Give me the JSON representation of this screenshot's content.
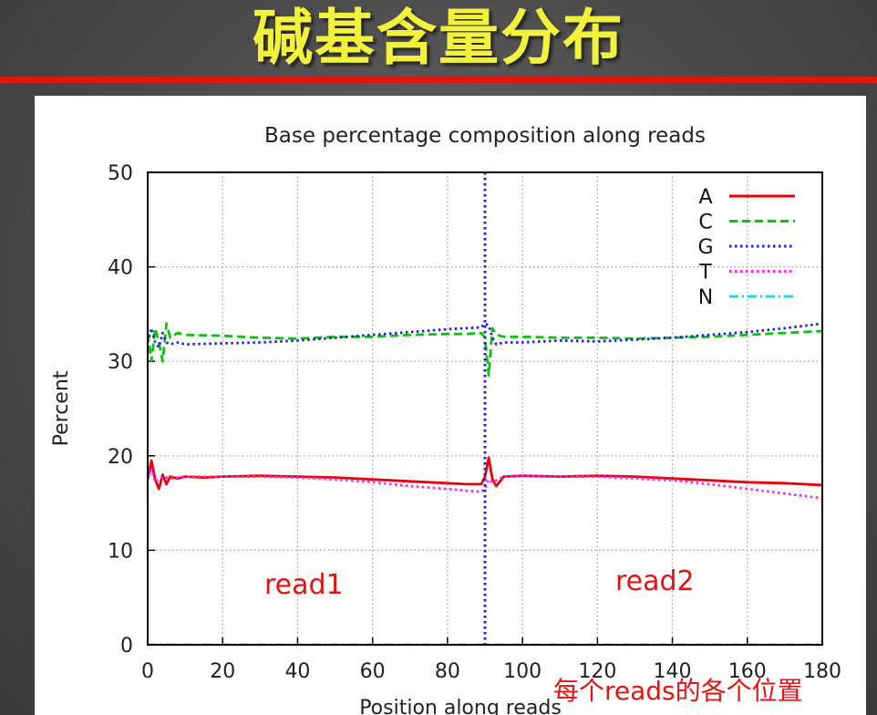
{
  "slide": {
    "title": "碱基含量分布",
    "accent_color": "#e11414",
    "title_color": "#f2f23a"
  },
  "chart_data": {
    "type": "line",
    "title": "Base percentage composition along reads",
    "xlabel": "Position along reads",
    "ylabel": "Percent",
    "xlim": [
      0,
      180
    ],
    "ylim": [
      0,
      50
    ],
    "xticks": [
      "0",
      "20",
      "40",
      "60",
      "80",
      "100",
      "120",
      "140",
      "160",
      "180"
    ],
    "yticks": [
      "0",
      "10",
      "20",
      "30",
      "40",
      "50"
    ],
    "grid": true,
    "legend_position": "top-right",
    "divider_x": 90,
    "series": [
      {
        "name": "A",
        "color": "#e8000b",
        "dash": "solid",
        "x": [
          0,
          1,
          2,
          3,
          4,
          5,
          6,
          8,
          10,
          15,
          20,
          30,
          40,
          50,
          60,
          70,
          80,
          85,
          89,
          90,
          91,
          92,
          93,
          95,
          100,
          110,
          120,
          130,
          140,
          150,
          160,
          170,
          175,
          180
        ],
        "values": [
          17.5,
          19.5,
          17.5,
          16.5,
          18,
          17,
          17.8,
          17.6,
          17.8,
          17.7,
          17.8,
          17.9,
          17.8,
          17.7,
          17.5,
          17.3,
          17.1,
          17,
          17,
          17.8,
          19.8,
          17.5,
          16.8,
          17.8,
          17.9,
          17.8,
          17.9,
          17.8,
          17.6,
          17.4,
          17.2,
          17.1,
          17,
          16.9
        ]
      },
      {
        "name": "C",
        "color": "#10c010",
        "dash": "dashed",
        "x": [
          0,
          1,
          2,
          3,
          4,
          5,
          6,
          8,
          10,
          20,
          30,
          40,
          50,
          60,
          70,
          80,
          85,
          89,
          90,
          91,
          92,
          93,
          95,
          100,
          110,
          120,
          130,
          140,
          150,
          160,
          170,
          180
        ],
        "values": [
          33,
          30,
          33.5,
          32,
          30,
          34,
          32.5,
          33,
          32.8,
          32.7,
          32.5,
          32.4,
          32.6,
          32.6,
          32.8,
          32.9,
          32.9,
          33,
          32.5,
          28.5,
          33.5,
          32.8,
          32.6,
          32.6,
          32.5,
          32.5,
          32.4,
          32.5,
          32.6,
          32.8,
          33,
          33.2
        ]
      },
      {
        "name": "G",
        "color": "#2020e0",
        "dash": "dotted",
        "x": [
          0,
          1,
          2,
          3,
          4,
          5,
          6,
          8,
          10,
          20,
          30,
          40,
          50,
          60,
          70,
          80,
          85,
          89,
          90,
          91,
          92,
          93,
          95,
          100,
          110,
          120,
          130,
          140,
          150,
          160,
          170,
          180
        ],
        "values": [
          32,
          33.5,
          32,
          31.5,
          33,
          32,
          31.8,
          32,
          31.8,
          31.9,
          32,
          32.2,
          32.5,
          32.8,
          33.1,
          33.4,
          33.5,
          33.6,
          34,
          33.8,
          32.5,
          31.8,
          32,
          32,
          32.2,
          32.1,
          32.3,
          32.5,
          32.8,
          33.1,
          33.5,
          34
        ]
      },
      {
        "name": "T",
        "color": "#ff20ff",
        "dash": "dotted",
        "x": [
          0,
          1,
          2,
          3,
          4,
          6,
          8,
          10,
          20,
          30,
          40,
          50,
          60,
          70,
          80,
          85,
          89,
          90,
          91,
          92,
          95,
          100,
          110,
          120,
          130,
          140,
          150,
          160,
          170,
          180
        ],
        "values": [
          17.8,
          18.5,
          17.2,
          17.5,
          17.8,
          17.6,
          17.7,
          17.8,
          17.8,
          17.8,
          17.7,
          17.5,
          17.2,
          16.8,
          16.5,
          16.3,
          16.2,
          16.5,
          17.5,
          17.2,
          17.8,
          17.9,
          17.8,
          17.8,
          17.6,
          17.4,
          17,
          16.5,
          16,
          15.5
        ]
      },
      {
        "name": "N",
        "color": "#20d8e0",
        "dash": "dashdot",
        "x": [
          0,
          180
        ],
        "values": [
          0,
          0
        ]
      }
    ]
  },
  "annotations": {
    "read1": "read1",
    "read2": "read2",
    "position_note": "每个reads的各个位置"
  }
}
